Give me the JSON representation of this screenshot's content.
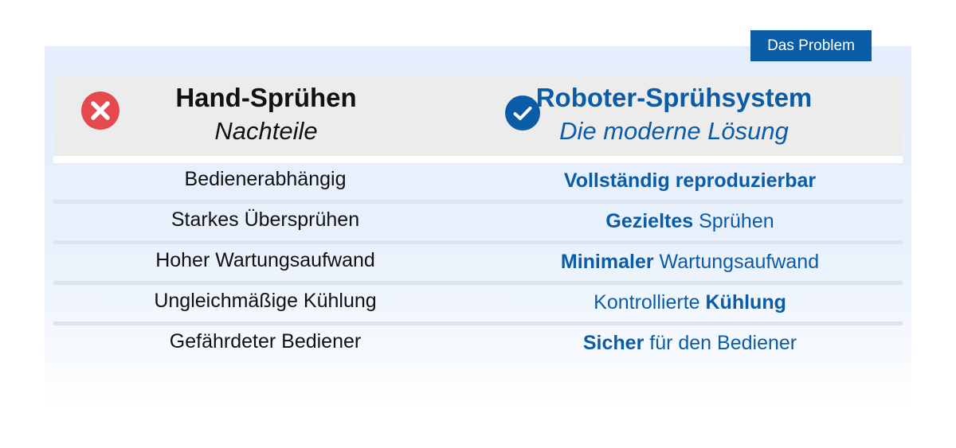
{
  "tag": "Das Problem",
  "left": {
    "title": "Hand-Sprühen",
    "subtitle": "Nachteile",
    "icon": "close-circle-icon",
    "icon_color": "#e5484d"
  },
  "right": {
    "title": "Roboter-Sprühsystem",
    "subtitle": "Die moderne Lösung",
    "icon": "check-circle-icon",
    "icon_color": "#0b5ca6"
  },
  "colors": {
    "accent": "#0b5ca6",
    "header_bg": "#ececec",
    "panel_bg": "#e3edfb"
  },
  "rows": [
    {
      "left": "Bedienerabhängig",
      "right": [
        {
          "text": "Vollständig reproduzierbar",
          "bold": true
        }
      ]
    },
    {
      "left": "Starkes Übersprühen",
      "right": [
        {
          "text": "Gezieltes",
          "bold": true
        },
        {
          "text": " Sprühen",
          "bold": false
        }
      ]
    },
    {
      "left": "Hoher Wartungsaufwand",
      "right": [
        {
          "text": "Minimaler",
          "bold": true
        },
        {
          "text": " Wartungsaufwand",
          "bold": false
        }
      ]
    },
    {
      "left": "Ungleichmäßige Kühlung",
      "right": [
        {
          "text": "Kontrollierte ",
          "bold": false
        },
        {
          "text": "Kühlung",
          "bold": true
        }
      ]
    },
    {
      "left": "Gefährdeter Bediener",
      "right": [
        {
          "text": "Sicher",
          "bold": true
        },
        {
          "text": " für den Bediener",
          "bold": false
        }
      ]
    }
  ]
}
